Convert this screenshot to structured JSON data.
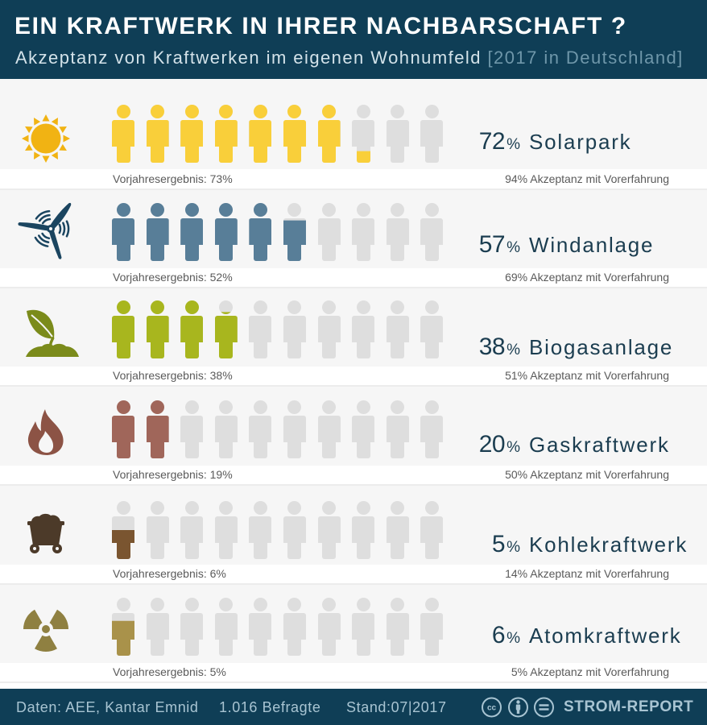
{
  "header": {
    "title": "EIN KRAFTWERK IN IHRER NACHBARSCHAFT ?",
    "subtitle": "Akzeptanz von Kraftwerken im eigenen Wohnumfeld",
    "subtitle_note": "[2017 in Deutschland]"
  },
  "figure_base_color": "#dedede",
  "icons_per_row": 10,
  "rows": [
    {
      "label": "Solarpark",
      "percent": 72,
      "value": "72",
      "unit": "%",
      "icon": "sun-icon",
      "figure_color": "#f9cf3a",
      "icon_color": "#f1b313",
      "previous": "Vorjahresergebnis: 73%",
      "experience": "94% Akzeptanz mit Vorerfahrung"
    },
    {
      "label": "Windanlage",
      "percent": 57,
      "value": "57",
      "unit": "%",
      "icon": "wind-turbine-icon",
      "figure_color": "#587e98",
      "icon_color": "#1b4560",
      "previous": "Vorjahresergebnis: 52%",
      "experience": "69% Akzeptanz mit Vorerfahrung"
    },
    {
      "label": "Biogasanlage",
      "percent": 38,
      "value": "38",
      "unit": "%",
      "icon": "plant-icon",
      "figure_color": "#a8b61e",
      "icon_color": "#7b8b1b",
      "previous": "Vorjahresergebnis: 38%",
      "experience": "51% Akzeptanz mit Vorerfahrung"
    },
    {
      "label": "Gaskraftwerk",
      "percent": 20,
      "value": "20",
      "unit": "%",
      "icon": "flame-icon",
      "figure_color": "#a0665a",
      "icon_color": "#8c5345",
      "previous": "Vorjahresergebnis: 19%",
      "experience": "50% Akzeptanz mit Vorerfahrung"
    },
    {
      "label": "Kohlekraftwerk",
      "percent": 5,
      "value": "5",
      "unit": "%",
      "icon": "mine-cart-icon",
      "figure_color": "#7a5530",
      "icon_color": "#4c3a29",
      "previous": "Vorjahresergebnis: 6%",
      "experience": "14% Akzeptanz mit Vorerfahrung"
    },
    {
      "label": "Atomkraftwerk",
      "percent": 6,
      "value": "6",
      "unit": "%",
      "icon": "radiation-icon",
      "figure_color": "#a9924a",
      "icon_color": "#8f8041",
      "previous": "Vorjahresergebnis: 5%",
      "experience": "5% Akzeptanz mit Vorerfahrung"
    }
  ],
  "footer": {
    "source": "Daten: AEE, Kantar Emnid",
    "respondents": "1.016 Befragte",
    "date": "Stand:07|2017",
    "license_icons": [
      "cc-icon",
      "attribution-icon",
      "no-derivatives-icon"
    ],
    "cc_text": "cc",
    "brand": "STROM-REPORT"
  },
  "colors": {
    "header_bg": "#0f3e56",
    "text_dark": "#1b3d50",
    "footer_text": "#a8c4d2"
  },
  "chart_data": {
    "type": "bar",
    "title": "EIN KRAFTWERK IN IHRER NACHBARSCHAFT ?",
    "subtitle": "Akzeptanz von Kraftwerken im eigenen Wohnumfeld [2017 in Deutschland]",
    "categories": [
      "Solarpark",
      "Windanlage",
      "Biogasanlage",
      "Gaskraftwerk",
      "Kohlekraftwerk",
      "Atomkraftwerk"
    ],
    "series": [
      {
        "name": "Akzeptanz 2017 (%)",
        "values": [
          72,
          57,
          38,
          20,
          5,
          6
        ]
      },
      {
        "name": "Vorjahresergebnis (%)",
        "values": [
          73,
          52,
          38,
          19,
          6,
          5
        ]
      },
      {
        "name": "Akzeptanz mit Vorerfahrung (%)",
        "values": [
          94,
          69,
          51,
          50,
          14,
          5
        ]
      }
    ],
    "xlabel": "",
    "ylabel": "",
    "ylim": [
      0,
      100
    ],
    "icons_per_row": 10,
    "legend": "none",
    "grid": false,
    "source": "Daten: AEE, Kantar Emnid",
    "respondents": "1.016 Befragte",
    "date": "Stand:07|2017"
  }
}
